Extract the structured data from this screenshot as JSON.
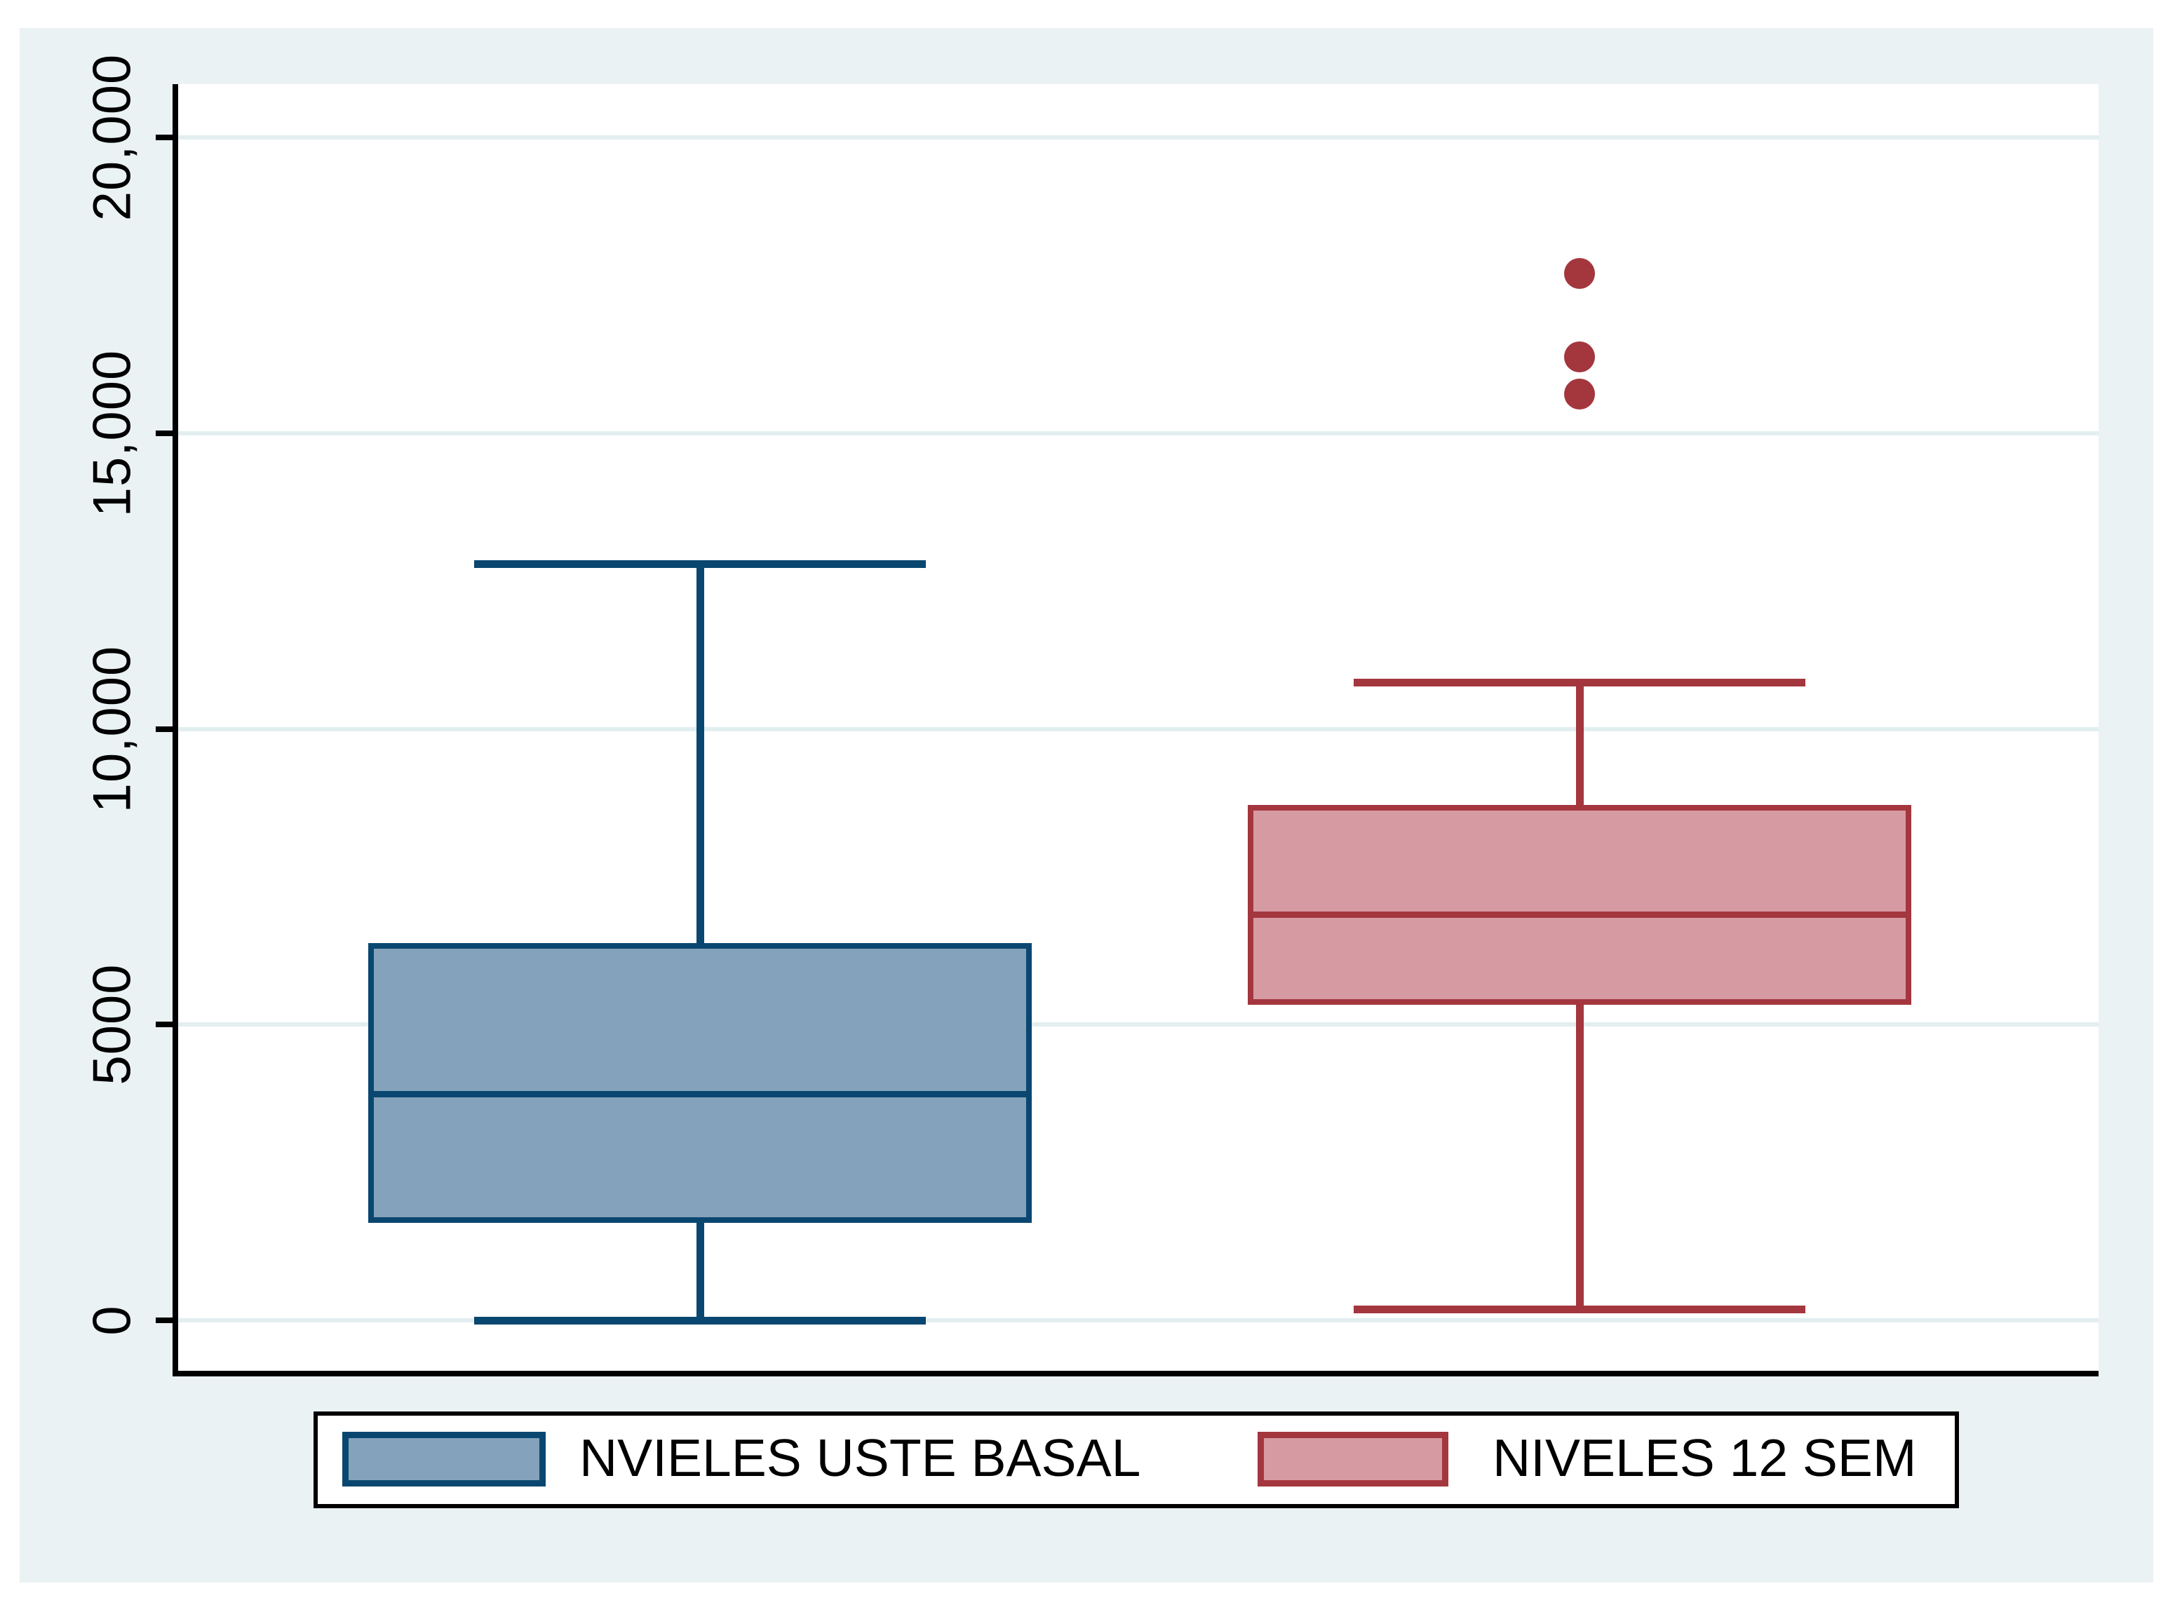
{
  "chart_data": {
    "type": "boxplot",
    "title": "",
    "xlabel": "",
    "ylabel": "",
    "grid": true,
    "legend_position": "bottom",
    "y_axis": {
      "range": [
        0,
        21000
      ],
      "ticks": [
        {
          "value": 0,
          "label": "0"
        },
        {
          "value": 5000,
          "label": "5000"
        },
        {
          "value": 10000,
          "label": "10,000"
        },
        {
          "value": 15000,
          "label": "15,000"
        },
        {
          "value": 20000,
          "label": "20,000"
        }
      ]
    },
    "series": [
      {
        "name": "NVIELES USTE BASAL",
        "fill": "#84A2BB",
        "border": "#0A4770",
        "stats": {
          "lower_whisker": 0,
          "q1": 1650,
          "median": 3830,
          "q3": 6380,
          "upper_whisker": 12800
        },
        "outliers": []
      },
      {
        "name": "NIVELES 12 SEM",
        "fill": "#D69BA2",
        "border": "#A4363E",
        "stats": {
          "lower_whisker": 190,
          "q1": 5340,
          "median": 6860,
          "q3": 8720,
          "upper_whisker": 10790
        },
        "outliers": [
          15660,
          16290,
          17700
        ]
      }
    ],
    "colors": {
      "graph_background": "#EAF2F3",
      "plot_background": "#FFFFFF",
      "gridline": "#E2EEF0",
      "axis": "#000000"
    }
  }
}
